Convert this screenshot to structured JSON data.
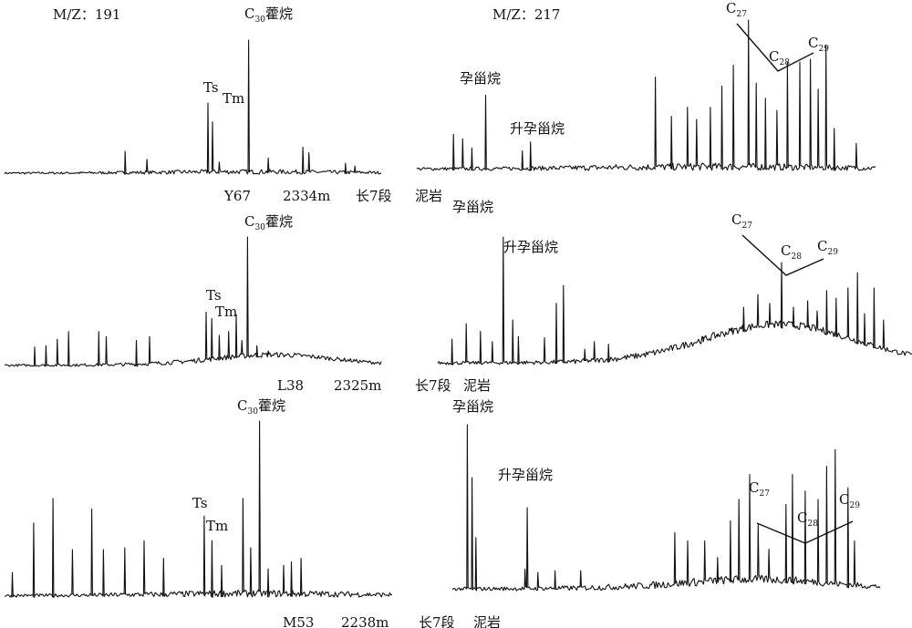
{
  "chart_data": {
    "type": "line",
    "ions": {
      "left": "M/Z：191",
      "right": "M/Z：217"
    },
    "rows": [
      {
        "sample": "Y67",
        "depth": "2334m",
        "member": "长7段",
        "lithology": "泥岩",
        "m191": {
          "length": 100,
          "peaks": [
            {
              "x": 32.0,
              "h": 0.17
            },
            {
              "x": 37.8,
              "h": 0.11
            },
            {
              "x": 54.0,
              "h": 0.53,
              "label": "Ts"
            },
            {
              "x": 55.2,
              "h": 0.39,
              "label": "Tm"
            },
            {
              "x": 57.0,
              "h": 0.09
            },
            {
              "x": 64.8,
              "h": 1.0,
              "label": "C30藿烷"
            },
            {
              "x": 70.0,
              "h": 0.12
            },
            {
              "x": 79.2,
              "h": 0.2
            },
            {
              "x": 80.8,
              "h": 0.16
            },
            {
              "x": 90.5,
              "h": 0.08
            },
            {
              "x": 93.0,
              "h": 0.06
            }
          ],
          "noise": 0.035
        },
        "m217": {
          "length": 100,
          "peaks": [
            {
              "x": 8.0,
              "h": 0.24
            },
            {
              "x": 10.0,
              "h": 0.21
            },
            {
              "x": 12.0,
              "h": 0.15
            },
            {
              "x": 15.0,
              "h": 0.5,
              "label": "孕甾烷"
            },
            {
              "x": 23.0,
              "h": 0.13
            },
            {
              "x": 24.8,
              "h": 0.19,
              "label": "升孕甾烷"
            },
            {
              "x": 52.0,
              "h": 0.62
            },
            {
              "x": 55.5,
              "h": 0.36
            },
            {
              "x": 59.0,
              "h": 0.42
            },
            {
              "x": 61.0,
              "h": 0.34
            },
            {
              "x": 64.0,
              "h": 0.42
            },
            {
              "x": 66.5,
              "h": 0.56
            },
            {
              "x": 69.0,
              "h": 0.7
            },
            {
              "x": 72.3,
              "h": 1.0,
              "label": "C27"
            },
            {
              "x": 74.0,
              "h": 0.58
            },
            {
              "x": 76.0,
              "h": 0.48
            },
            {
              "x": 78.5,
              "h": 0.4
            },
            {
              "x": 80.8,
              "h": 0.72,
              "label": "C28"
            },
            {
              "x": 83.5,
              "h": 0.72
            },
            {
              "x": 85.8,
              "h": 0.74
            },
            {
              "x": 87.5,
              "h": 0.54
            },
            {
              "x": 89.2,
              "h": 0.83,
              "label": "C29"
            },
            {
              "x": 91.0,
              "h": 0.28
            },
            {
              "x": 95.8,
              "h": 0.18
            }
          ],
          "noise": 0.05
        }
      },
      {
        "sample": "L38",
        "depth": "2325m",
        "member": "长7段",
        "lithology": "泥岩",
        "m191": {
          "length": 100,
          "peaks": [
            {
              "x": 8.0,
              "h": 0.15
            },
            {
              "x": 11.0,
              "h": 0.16
            },
            {
              "x": 14.0,
              "h": 0.21
            },
            {
              "x": 17.0,
              "h": 0.27
            },
            {
              "x": 25.0,
              "h": 0.27
            },
            {
              "x": 27.0,
              "h": 0.23
            },
            {
              "x": 35.0,
              "h": 0.2
            },
            {
              "x": 38.5,
              "h": 0.23
            },
            {
              "x": 53.5,
              "h": 0.42
            },
            {
              "x": 55.0,
              "h": 0.37,
              "label": "Ts"
            },
            {
              "x": 57.0,
              "h": 0.24
            },
            {
              "x": 59.5,
              "h": 0.27,
              "label": "Tm"
            },
            {
              "x": 61.5,
              "h": 0.4
            },
            {
              "x": 63.0,
              "h": 0.2
            },
            {
              "x": 64.5,
              "h": 1.0,
              "label": "C30藿烷"
            },
            {
              "x": 67.0,
              "h": 0.16
            },
            {
              "x": 70.0,
              "h": 0.12
            }
          ],
          "noise": 0.04
        },
        "m217": {
          "length": 100,
          "peaks": [
            {
              "x": 3.0,
              "h": 0.2
            },
            {
              "x": 6.0,
              "h": 0.32
            },
            {
              "x": 9.0,
              "h": 0.26
            },
            {
              "x": 11.5,
              "h": 0.18
            },
            {
              "x": 13.8,
              "h": 1.0,
              "label": "孕甾烷"
            },
            {
              "x": 15.8,
              "h": 0.35
            },
            {
              "x": 17.0,
              "h": 0.22
            },
            {
              "x": 22.5,
              "h": 0.21
            },
            {
              "x": 25.0,
              "h": 0.48
            },
            {
              "x": 26.5,
              "h": 0.62,
              "label": "升孕甾烷"
            },
            {
              "x": 31.0,
              "h": 0.12
            },
            {
              "x": 33.0,
              "h": 0.18
            },
            {
              "x": 36.0,
              "h": 0.16
            },
            {
              "x": 56.0,
              "h": 0.18
            },
            {
              "x": 59.0,
              "h": 0.22
            },
            {
              "x": 62.0,
              "h": 0.26
            },
            {
              "x": 64.5,
              "h": 0.45
            },
            {
              "x": 67.5,
              "h": 0.55
            },
            {
              "x": 70.0,
              "h": 0.48
            },
            {
              "x": 72.5,
              "h": 0.8,
              "label": "C27"
            },
            {
              "x": 75.0,
              "h": 0.45
            },
            {
              "x": 78.0,
              "h": 0.5
            },
            {
              "x": 80.0,
              "h": 0.42
            },
            {
              "x": 82.0,
              "h": 0.58,
              "label": "C28"
            },
            {
              "x": 84.0,
              "h": 0.52
            },
            {
              "x": 86.5,
              "h": 0.6
            },
            {
              "x": 88.5,
              "h": 0.72
            },
            {
              "x": 90.0,
              "h": 0.4
            },
            {
              "x": 92.0,
              "h": 0.6,
              "label": "C29"
            },
            {
              "x": 94.0,
              "h": 0.35
            }
          ],
          "noise": 0.06
        }
      },
      {
        "sample": "M53",
        "depth": "2238m",
        "member": "长7段",
        "lithology": "泥岩",
        "m191": {
          "length": 100,
          "peaks": [
            {
              "x": 2.0,
              "h": 0.14
            },
            {
              "x": 7.5,
              "h": 0.42
            },
            {
              "x": 12.5,
              "h": 0.56
            },
            {
              "x": 17.5,
              "h": 0.27
            },
            {
              "x": 22.5,
              "h": 0.5
            },
            {
              "x": 25.5,
              "h": 0.27
            },
            {
              "x": 31.0,
              "h": 0.28
            },
            {
              "x": 36.0,
              "h": 0.32
            },
            {
              "x": 41.0,
              "h": 0.22
            },
            {
              "x": 51.5,
              "h": 0.46,
              "label": "Ts"
            },
            {
              "x": 53.5,
              "h": 0.32,
              "label": "Tm"
            },
            {
              "x": 56.0,
              "h": 0.18
            },
            {
              "x": 61.5,
              "h": 0.56
            },
            {
              "x": 63.5,
              "h": 0.28
            },
            {
              "x": 65.8,
              "h": 1.0,
              "label": "C30藿烷"
            },
            {
              "x": 68.0,
              "h": 0.16
            },
            {
              "x": 72.0,
              "h": 0.18
            },
            {
              "x": 74.0,
              "h": 0.2
            },
            {
              "x": 76.5,
              "h": 0.22
            }
          ],
          "noise": 0.04
        },
        "m217": {
          "length": 100,
          "peaks": [
            {
              "x": 3.5,
              "h": 1.0,
              "label": "孕甾烷"
            },
            {
              "x": 4.6,
              "h": 0.68
            },
            {
              "x": 5.5,
              "h": 0.32
            },
            {
              "x": 17.0,
              "h": 0.13
            },
            {
              "x": 17.5,
              "h": 0.5,
              "label": "升孕甾烷"
            },
            {
              "x": 20.0,
              "h": 0.11
            },
            {
              "x": 24.0,
              "h": 0.12
            },
            {
              "x": 30.0,
              "h": 0.12
            },
            {
              "x": 52.0,
              "h": 0.35
            },
            {
              "x": 55.0,
              "h": 0.3
            },
            {
              "x": 59.0,
              "h": 0.3
            },
            {
              "x": 62.0,
              "h": 0.2
            },
            {
              "x": 65.0,
              "h": 0.42
            },
            {
              "x": 67.0,
              "h": 0.55
            },
            {
              "x": 69.5,
              "h": 0.7,
              "label": "C27"
            },
            {
              "x": 71.5,
              "h": 0.4
            },
            {
              "x": 74.0,
              "h": 0.25
            },
            {
              "x": 78.0,
              "h": 0.52
            },
            {
              "x": 79.5,
              "h": 0.7
            },
            {
              "x": 82.5,
              "h": 0.6,
              "label": "C28"
            },
            {
              "x": 85.5,
              "h": 0.55
            },
            {
              "x": 87.5,
              "h": 0.75
            },
            {
              "x": 89.5,
              "h": 0.85
            },
            {
              "x": 92.5,
              "h": 0.62,
              "label": "C29"
            },
            {
              "x": 94.0,
              "h": 0.3
            }
          ],
          "noise": 0.05
        }
      }
    ]
  },
  "labels": {
    "c30_hopane": "C30藿烷",
    "pregnane": "孕甾烷",
    "homopregnane": "升孕甾烷",
    "ts": "Ts",
    "tm": "Tm",
    "c27": "C27",
    "c28": "C28",
    "c29": "C29"
  }
}
